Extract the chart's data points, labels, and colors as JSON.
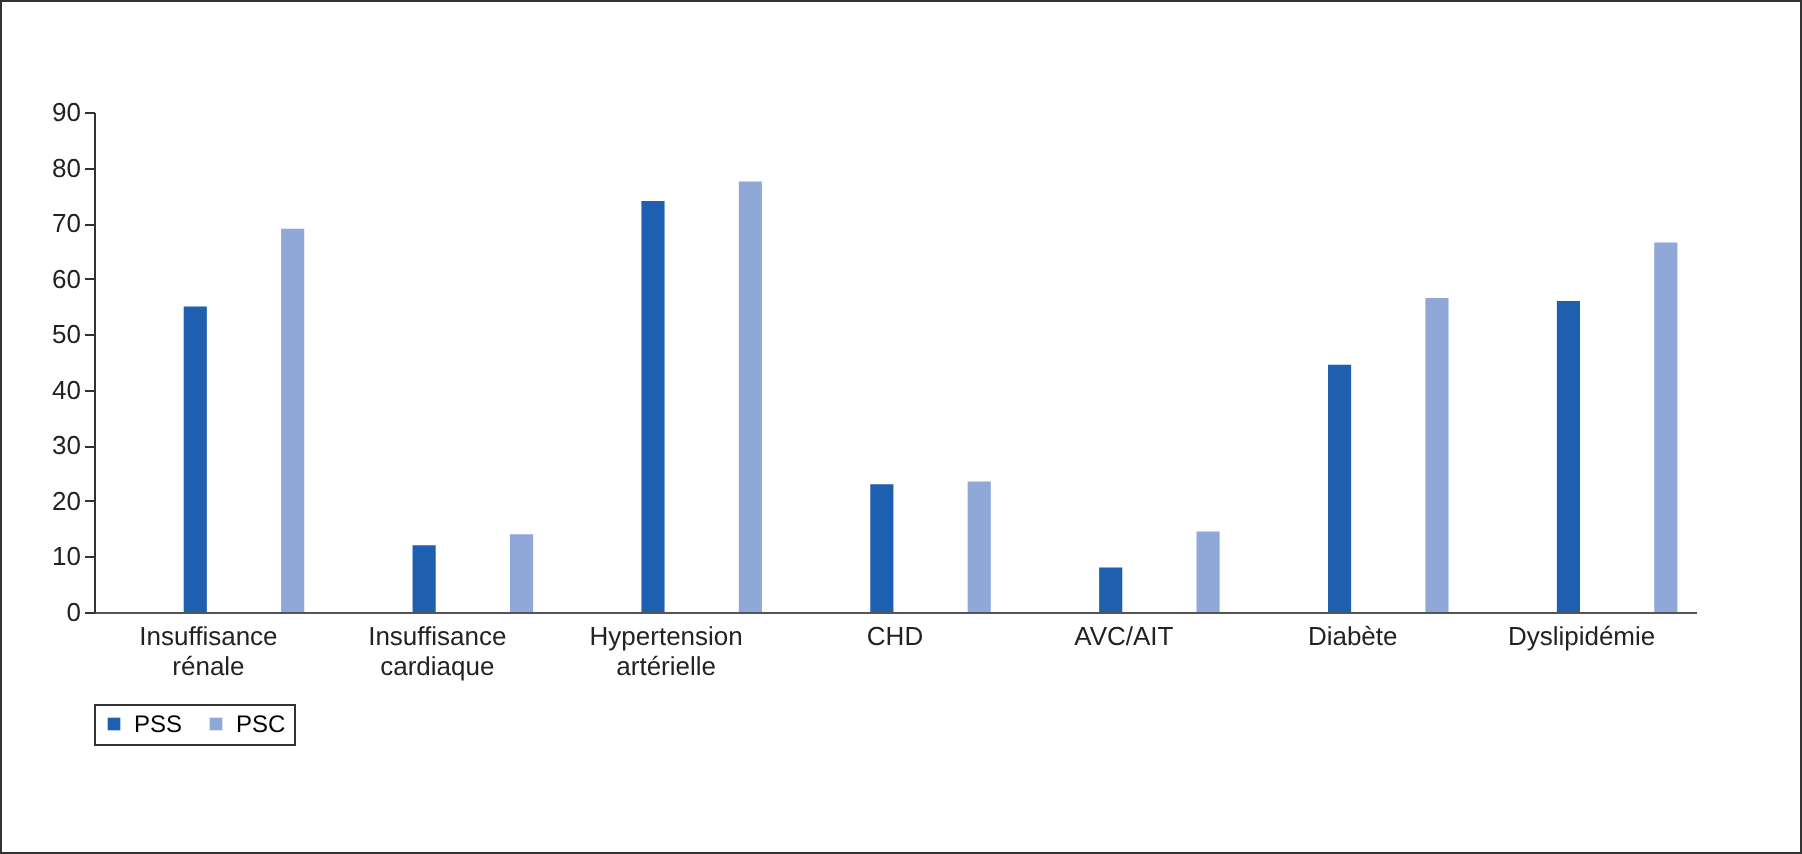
{
  "chart_data": {
    "type": "bar",
    "categories": [
      "Insuffisance rénale",
      "Insuffisance cardiaque",
      "Hypertension artérielle",
      "CHD",
      "AVC/AIT",
      "Diabète",
      "Dyslipidémie"
    ],
    "series": [
      {
        "name": "PSS",
        "color": "#1f5fb0",
        "values": [
          55,
          12,
          74,
          23,
          8,
          44.5,
          56
        ]
      },
      {
        "name": "PSC",
        "color": "#8fa8d8",
        "values": [
          69,
          14,
          77.5,
          23.5,
          14.5,
          56.5,
          66.5
        ]
      }
    ],
    "ylim": [
      0,
      90
    ],
    "yticks": [
      0,
      10,
      20,
      30,
      40,
      50,
      60,
      70,
      80,
      90
    ],
    "grid": false,
    "legend": "bottom"
  }
}
